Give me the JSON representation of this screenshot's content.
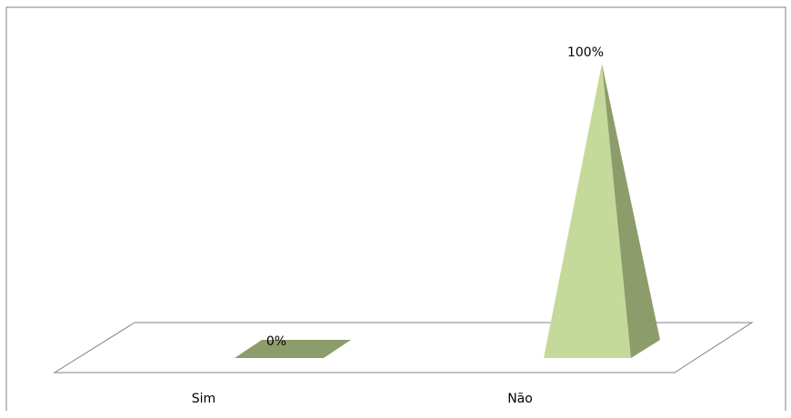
{
  "chart_data": {
    "type": "bar",
    "style": "3d-pyramid",
    "categories": [
      "Sim",
      "Não"
    ],
    "values": [
      0,
      100
    ],
    "data_labels": [
      "0%",
      "100%"
    ],
    "ylim": [
      0,
      100
    ],
    "grid": false,
    "legend": "none",
    "colors": {
      "front_face": "#c5d99a",
      "side_face": "#8c9c6a",
      "base_plate": "#ffffff",
      "border": "#808080",
      "text": "#000000"
    }
  }
}
